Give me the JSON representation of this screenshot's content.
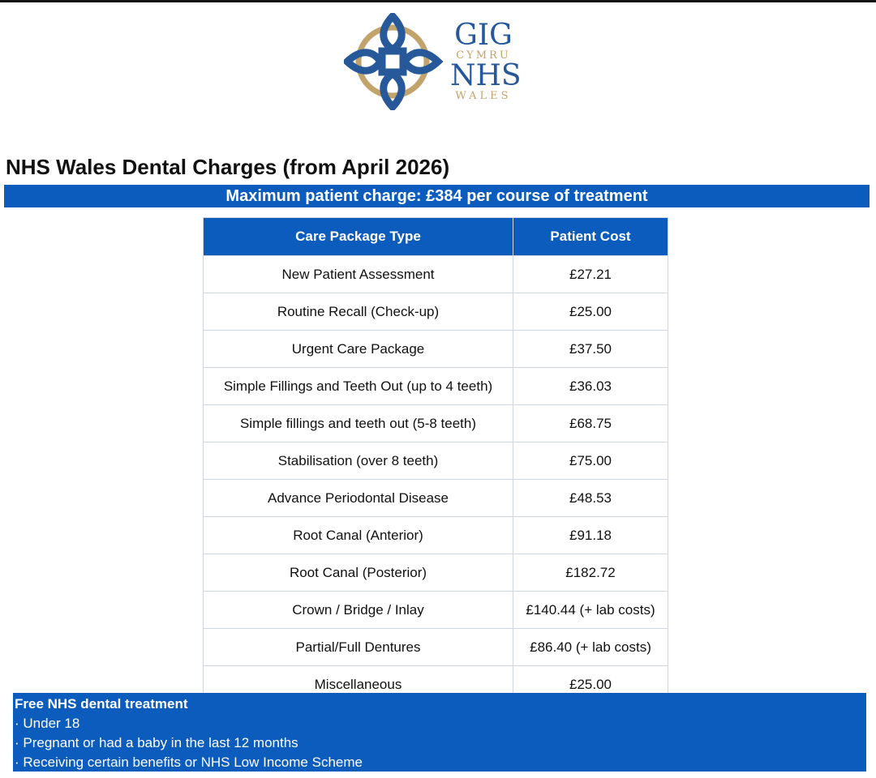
{
  "logo": {
    "line1": "GIG",
    "line2": "CYMRU",
    "line3": "NHS",
    "line4": "WALES",
    "colors": {
      "blue": "#27589a",
      "gold": "#c3a36c"
    }
  },
  "title": "NHS Wales Dental Charges (from April 2026)",
  "banner": "Maximum patient charge: £384 per course of treatment",
  "table": {
    "headers": [
      "Care Package Type",
      "Patient Cost"
    ],
    "rows": [
      [
        "New Patient Assessment",
        "£27.21"
      ],
      [
        "Routine Recall (Check-up)",
        "£25.00"
      ],
      [
        "Urgent Care Package",
        "£37.50"
      ],
      [
        "Simple Fillings and Teeth Out (up to 4 teeth)",
        "£36.03"
      ],
      [
        "Simple fillings and teeth out (5-8 teeth)",
        "£68.75"
      ],
      [
        "Stabilisation (over 8 teeth)",
        "£75.00"
      ],
      [
        "Advance Periodontal Disease",
        "£48.53"
      ],
      [
        "Root Canal (Anterior)",
        "£91.18"
      ],
      [
        "Root Canal (Posterior)",
        "£182.72"
      ],
      [
        "Crown / Bridge / Inlay",
        "£140.44 (+ lab costs)"
      ],
      [
        "Partial/Full Dentures",
        "£86.40 (+ lab costs)"
      ],
      [
        "Miscellaneous",
        "£25.00"
      ]
    ]
  },
  "free": {
    "heading": "Free NHS dental treatment",
    "items": [
      "· Under 18",
      "· Pregnant or had a baby in the last 12 months",
      "· Receiving certain benefits or NHS Low Income Scheme"
    ]
  },
  "accent": "#0b5cbd"
}
